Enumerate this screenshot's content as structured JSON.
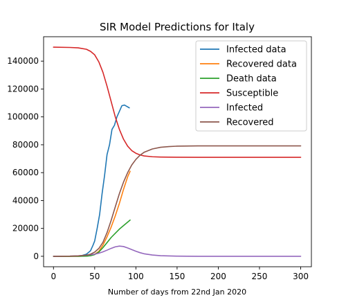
{
  "chart_data": {
    "type": "line",
    "title": "SIR Model Predictions for Italy",
    "xlabel": "Number of days from 22nd Jan 2020",
    "ylabel": "",
    "xlim": [
      -12,
      313
    ],
    "ylim": [
      -7500,
      157500
    ],
    "xticks": [
      0,
      50,
      100,
      150,
      200,
      250,
      300
    ],
    "yticks": [
      0,
      20000,
      40000,
      60000,
      80000,
      100000,
      120000,
      140000
    ],
    "grid": false,
    "legend": "top-right",
    "series": [
      {
        "name": "Infected data",
        "color": "#1f77b4",
        "x": [
          0,
          20,
          30,
          35,
          40,
          45,
          48,
          50,
          53,
          56,
          59,
          62,
          65,
          68,
          71,
          74,
          77,
          80,
          83,
          86,
          89,
          92
        ],
        "y": [
          0,
          0,
          200,
          600,
          1500,
          4000,
          8000,
          11000,
          20000,
          30000,
          45000,
          58000,
          73000,
          80000,
          91000,
          94000,
          100000,
          104000,
          108000,
          108500,
          107500,
          106500
        ]
      },
      {
        "name": "Recovered data",
        "color": "#ff7f0e",
        "x": [
          0,
          30,
          40,
          45,
          50,
          55,
          60,
          65,
          70,
          75,
          80,
          85,
          90,
          93
        ],
        "y": [
          0,
          0,
          200,
          500,
          1500,
          3500,
          8000,
          14000,
          21000,
          29000,
          38000,
          48000,
          57000,
          61000
        ]
      },
      {
        "name": "Death data",
        "color": "#2ca02c",
        "x": [
          0,
          30,
          40,
          45,
          50,
          55,
          60,
          65,
          70,
          75,
          80,
          85,
          90,
          93
        ],
        "y": [
          0,
          0,
          100,
          400,
          1200,
          3000,
          6200,
          9800,
          13500,
          16500,
          19500,
          22000,
          24500,
          26000
        ]
      },
      {
        "name": "Susceptible",
        "color": "#d62728",
        "x": [
          0,
          20,
          30,
          40,
          45,
          50,
          55,
          60,
          65,
          70,
          75,
          80,
          85,
          90,
          95,
          100,
          105,
          110,
          120,
          130,
          140,
          150,
          175,
          200,
          250,
          300
        ],
        "y": [
          150000,
          149800,
          149500,
          148500,
          147000,
          144500,
          139500,
          132000,
          122000,
          111000,
          100000,
          91000,
          84000,
          79000,
          75800,
          73900,
          72700,
          72000,
          71400,
          71200,
          71100,
          71050,
          71000,
          71000,
          71000,
          71000
        ]
      },
      {
        "name": "Infected",
        "color": "#9467bd",
        "x": [
          0,
          20,
          30,
          40,
          50,
          55,
          60,
          65,
          70,
          75,
          80,
          85,
          90,
          95,
          100,
          105,
          110,
          120,
          130,
          150,
          175,
          200,
          250,
          300
        ],
        "y": [
          0,
          100,
          300,
          700,
          1500,
          2200,
          3200,
          4400,
          5700,
          6800,
          7300,
          7000,
          6000,
          4800,
          3600,
          2600,
          1800,
          900,
          400,
          100,
          0,
          0,
          0,
          0
        ]
      },
      {
        "name": "Recovered",
        "color": "#8c564b",
        "x": [
          0,
          20,
          30,
          40,
          45,
          50,
          55,
          60,
          65,
          70,
          75,
          80,
          85,
          90,
          95,
          100,
          105,
          110,
          120,
          130,
          140,
          150,
          175,
          200,
          250,
          300
        ],
        "y": [
          0,
          100,
          300,
          800,
          1500,
          3000,
          5600,
          10000,
          17000,
          25800,
          35500,
          45000,
          53200,
          60000,
          65500,
          69500,
          72500,
          74600,
          77000,
          78200,
          78700,
          79000,
          79200,
          79200,
          79200,
          79200
        ]
      }
    ]
  }
}
